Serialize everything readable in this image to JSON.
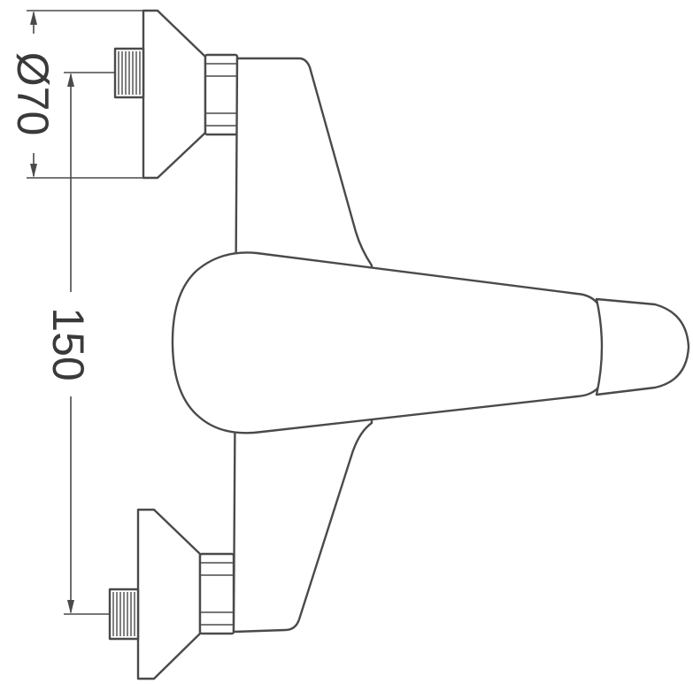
{
  "dimensions": {
    "diameter_label": "Ø70",
    "spacing_label": "150"
  },
  "colors": {
    "line": "#4a4a4a",
    "text": "#3a3a3a",
    "background": "#ffffff"
  }
}
